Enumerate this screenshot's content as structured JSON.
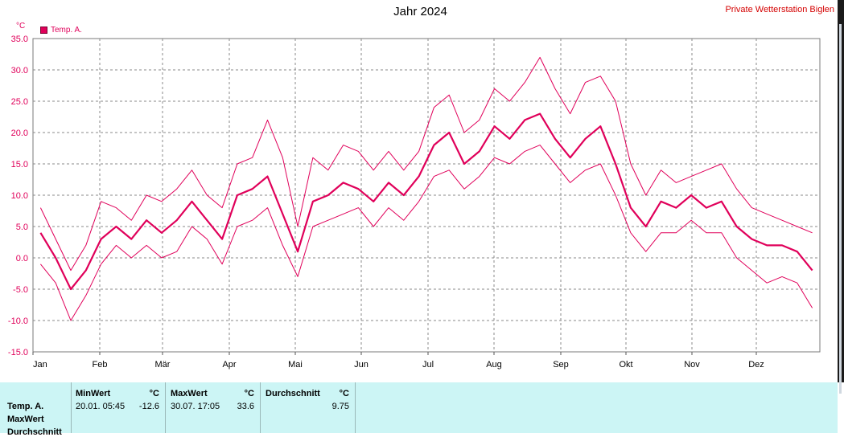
{
  "header": {
    "title": "Jahr 2024",
    "station": "Private Wetterstation Biglen",
    "unit": "°C",
    "legend_label": "Temp. A."
  },
  "colors": {
    "series": "#e0005a",
    "grid": "#8a8a8a",
    "stats_bg": "#ccf5f5",
    "station": "#d40000"
  },
  "chart_data": {
    "type": "line",
    "title": "Jahr 2024",
    "ylabel": "°C",
    "ylim": [
      -15,
      35
    ],
    "yticks": [
      "35.0",
      "30.0",
      "25.0",
      "20.0",
      "15.0",
      "10.0",
      "5.0",
      "0.0",
      "-5.0",
      "-10.0",
      "-15.0"
    ],
    "xticks": [
      "Jan",
      "Feb",
      "Mär",
      "Apr",
      "Mai",
      "Jun",
      "Jul",
      "Aug",
      "Sep",
      "Okt",
      "Nov",
      "Dez"
    ],
    "grid": true,
    "legend": "top-left",
    "x_unit": "week",
    "x": [
      1,
      2,
      3,
      4,
      5,
      6,
      7,
      8,
      9,
      10,
      11,
      12,
      13,
      14,
      15,
      16,
      17,
      18,
      19,
      20,
      21,
      22,
      23,
      24,
      25,
      26,
      27,
      28,
      29,
      30,
      31,
      32,
      33,
      34,
      35,
      36,
      37,
      38,
      39,
      40,
      41,
      42,
      43,
      44,
      45,
      46,
      47,
      48,
      49,
      50,
      51,
      52
    ],
    "series": [
      {
        "name": "Temp. A.",
        "role": "max",
        "values": [
          8,
          3,
          -2,
          2,
          9,
          8,
          6,
          10,
          9,
          11,
          14,
          10,
          8,
          15,
          16,
          22,
          16,
          5,
          16,
          14,
          18,
          17,
          14,
          17,
          14,
          17,
          24,
          26,
          20,
          22,
          27,
          25,
          28,
          32,
          27,
          23,
          28,
          29,
          25,
          15,
          10,
          14,
          12,
          13,
          14,
          15,
          11,
          8,
          7,
          6,
          5,
          4
        ]
      },
      {
        "name": "Temp. A.",
        "role": "mean",
        "values": [
          4,
          0,
          -5,
          -2,
          3,
          5,
          3,
          6,
          4,
          6,
          9,
          6,
          3,
          10,
          11,
          13,
          7,
          1,
          9,
          10,
          12,
          11,
          9,
          12,
          10,
          13,
          18,
          20,
          15,
          17,
          21,
          19,
          22,
          23,
          19,
          16,
          19,
          21,
          15,
          8,
          5,
          9,
          8,
          10,
          8,
          9,
          5,
          3,
          2,
          2,
          1,
          -2
        ]
      },
      {
        "name": "Temp. A.",
        "role": "min",
        "values": [
          -1,
          -4,
          -10,
          -6,
          -1,
          2,
          0,
          2,
          0,
          1,
          5,
          3,
          -1,
          5,
          6,
          8,
          2,
          -3,
          5,
          6,
          7,
          8,
          5,
          8,
          6,
          9,
          13,
          14,
          11,
          13,
          16,
          15,
          17,
          18,
          15,
          12,
          14,
          15,
          10,
          4,
          1,
          4,
          4,
          6,
          4,
          4,
          0,
          -2,
          -4,
          -3,
          -4,
          -8
        ]
      }
    ]
  },
  "stats": {
    "row_labels": [
      "Temp. A.",
      "MaxWert",
      "Durchschnitt"
    ],
    "min": {
      "header": "MinWert",
      "unit": "°C",
      "datetime": "20.01.  05:45",
      "value": "-12.6"
    },
    "max": {
      "header": "MaxWert",
      "unit": "°C",
      "datetime": "30.07.  17:05",
      "value": "33.6"
    },
    "avg": {
      "header": "Durchschnitt",
      "unit": "°C",
      "value": "9.75"
    }
  }
}
